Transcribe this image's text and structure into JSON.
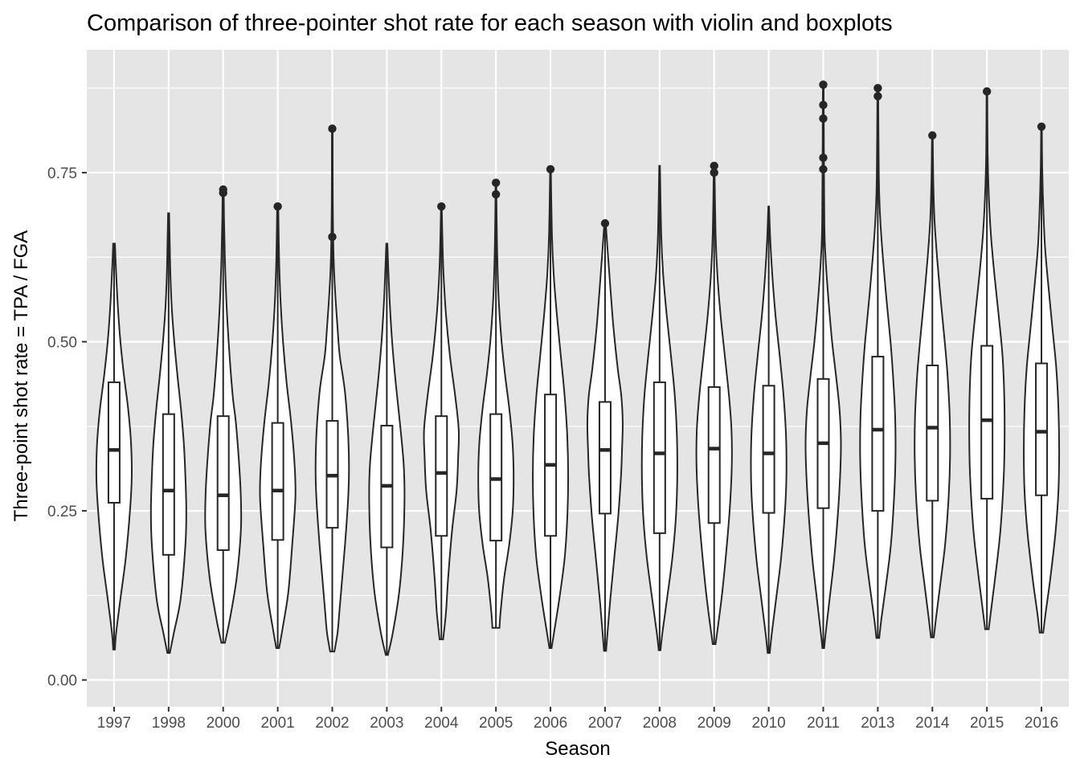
{
  "chart_data": {
    "type": "violin",
    "title": "Comparison of three-pointer shot rate for each season with violin and boxplots",
    "xlabel": "Season",
    "ylabel": "Three-point shot rate = TPA / FGA",
    "ylim": [
      0,
      0.9
    ],
    "yticks": [
      {
        "value": 0.0,
        "label": "0.00"
      },
      {
        "value": 0.25,
        "label": "0.25"
      },
      {
        "value": 0.5,
        "label": "0.50"
      },
      {
        "value": 0.75,
        "label": "0.75"
      }
    ],
    "grid": true,
    "categories": [
      "1997",
      "1998",
      "2000",
      "2001",
      "2002",
      "2003",
      "2004",
      "2005",
      "2006",
      "2007",
      "2008",
      "2009",
      "2010",
      "2011",
      "2013",
      "2014",
      "2015",
      "2016"
    ],
    "series": [
      {
        "season": "1997",
        "min": 0.045,
        "q1": 0.262,
        "median": 0.34,
        "q3": 0.44,
        "max": 0.645,
        "outliers": [],
        "density": [
          [
            0.045,
            0.05
          ],
          [
            0.07,
            0.12
          ],
          [
            0.12,
            0.36
          ],
          [
            0.18,
            0.66
          ],
          [
            0.25,
            0.9
          ],
          [
            0.3,
            1.0
          ],
          [
            0.35,
            0.96
          ],
          [
            0.4,
            0.8
          ],
          [
            0.45,
            0.56
          ],
          [
            0.5,
            0.36
          ],
          [
            0.55,
            0.22
          ],
          [
            0.6,
            0.12
          ],
          [
            0.645,
            0.05
          ]
        ]
      },
      {
        "season": "1998",
        "min": 0.04,
        "q1": 0.185,
        "median": 0.28,
        "q3": 0.393,
        "max": 0.69,
        "outliers": [],
        "density": [
          [
            0.04,
            0.07
          ],
          [
            0.07,
            0.3
          ],
          [
            0.12,
            0.68
          ],
          [
            0.2,
            0.95
          ],
          [
            0.25,
            1.0
          ],
          [
            0.3,
            0.95
          ],
          [
            0.35,
            0.86
          ],
          [
            0.4,
            0.7
          ],
          [
            0.45,
            0.5
          ],
          [
            0.5,
            0.32
          ],
          [
            0.55,
            0.18
          ],
          [
            0.6,
            0.1
          ],
          [
            0.65,
            0.06
          ],
          [
            0.69,
            0.03
          ]
        ]
      },
      {
        "season": "2000",
        "min": 0.055,
        "q1": 0.192,
        "median": 0.273,
        "q3": 0.39,
        "max": 0.725,
        "outliers": [
          0.72,
          0.725
        ],
        "density": [
          [
            0.055,
            0.1
          ],
          [
            0.09,
            0.38
          ],
          [
            0.15,
            0.76
          ],
          [
            0.22,
            1.0
          ],
          [
            0.27,
            1.0
          ],
          [
            0.32,
            0.9
          ],
          [
            0.38,
            0.72
          ],
          [
            0.42,
            0.54
          ],
          [
            0.48,
            0.36
          ],
          [
            0.55,
            0.2
          ],
          [
            0.62,
            0.1
          ],
          [
            0.68,
            0.05
          ],
          [
            0.725,
            0.03
          ]
        ]
      },
      {
        "season": "2001",
        "min": 0.047,
        "q1": 0.207,
        "median": 0.28,
        "q3": 0.38,
        "max": 0.7,
        "outliers": [
          0.7
        ],
        "density": [
          [
            0.047,
            0.08
          ],
          [
            0.08,
            0.3
          ],
          [
            0.13,
            0.6
          ],
          [
            0.2,
            0.82
          ],
          [
            0.27,
            1.0
          ],
          [
            0.32,
            0.95
          ],
          [
            0.38,
            0.76
          ],
          [
            0.44,
            0.5
          ],
          [
            0.5,
            0.3
          ],
          [
            0.56,
            0.16
          ],
          [
            0.62,
            0.08
          ],
          [
            0.7,
            0.03
          ]
        ]
      },
      {
        "season": "2002",
        "min": 0.042,
        "q1": 0.225,
        "median": 0.302,
        "q3": 0.383,
        "max": 0.815,
        "outliers": [
          0.655,
          0.815
        ],
        "density": [
          [
            0.042,
            0.12
          ],
          [
            0.07,
            0.3
          ],
          [
            0.1,
            0.4
          ],
          [
            0.15,
            0.56
          ],
          [
            0.2,
            0.72
          ],
          [
            0.26,
            0.88
          ],
          [
            0.3,
            0.94
          ],
          [
            0.34,
            0.93
          ],
          [
            0.38,
            0.86
          ],
          [
            0.43,
            0.7
          ],
          [
            0.48,
            0.42
          ],
          [
            0.52,
            0.3
          ],
          [
            0.57,
            0.17
          ],
          [
            0.62,
            0.08
          ],
          [
            0.7,
            0.03
          ],
          [
            0.815,
            0.02
          ]
        ]
      },
      {
        "season": "2003",
        "min": 0.037,
        "q1": 0.196,
        "median": 0.287,
        "q3": 0.376,
        "max": 0.645,
        "outliers": [],
        "density": [
          [
            0.037,
            0.06
          ],
          [
            0.07,
            0.34
          ],
          [
            0.13,
            0.7
          ],
          [
            0.2,
            0.92
          ],
          [
            0.27,
            1.0
          ],
          [
            0.32,
            0.95
          ],
          [
            0.38,
            0.74
          ],
          [
            0.44,
            0.5
          ],
          [
            0.5,
            0.3
          ],
          [
            0.56,
            0.16
          ],
          [
            0.61,
            0.08
          ],
          [
            0.645,
            0.03
          ]
        ]
      },
      {
        "season": "2004",
        "min": 0.06,
        "q1": 0.213,
        "median": 0.306,
        "q3": 0.39,
        "max": 0.7,
        "outliers": [
          0.7
        ],
        "density": [
          [
            0.06,
            0.1
          ],
          [
            0.1,
            0.26
          ],
          [
            0.15,
            0.38
          ],
          [
            0.22,
            0.6
          ],
          [
            0.28,
            0.86
          ],
          [
            0.33,
            0.95
          ],
          [
            0.37,
            0.98
          ],
          [
            0.42,
            0.78
          ],
          [
            0.48,
            0.48
          ],
          [
            0.54,
            0.26
          ],
          [
            0.6,
            0.12
          ],
          [
            0.65,
            0.06
          ],
          [
            0.7,
            0.02
          ]
        ]
      },
      {
        "season": "2005",
        "min": 0.077,
        "q1": 0.206,
        "median": 0.297,
        "q3": 0.393,
        "max": 0.735,
        "outliers": [
          0.718,
          0.735
        ],
        "density": [
          [
            0.077,
            0.2
          ],
          [
            0.1,
            0.26
          ],
          [
            0.15,
            0.46
          ],
          [
            0.2,
            0.75
          ],
          [
            0.25,
            0.95
          ],
          [
            0.3,
            1.0
          ],
          [
            0.35,
            0.94
          ],
          [
            0.4,
            0.76
          ],
          [
            0.45,
            0.52
          ],
          [
            0.5,
            0.32
          ],
          [
            0.56,
            0.16
          ],
          [
            0.62,
            0.08
          ],
          [
            0.68,
            0.04
          ],
          [
            0.735,
            0.02
          ]
        ]
      },
      {
        "season": "2006",
        "min": 0.047,
        "q1": 0.213,
        "median": 0.318,
        "q3": 0.422,
        "max": 0.755,
        "outliers": [
          0.755
        ],
        "density": [
          [
            0.047,
            0.06
          ],
          [
            0.07,
            0.2
          ],
          [
            0.12,
            0.5
          ],
          [
            0.18,
            0.8
          ],
          [
            0.24,
            0.95
          ],
          [
            0.3,
            1.0
          ],
          [
            0.36,
            0.95
          ],
          [
            0.42,
            0.8
          ],
          [
            0.48,
            0.58
          ],
          [
            0.54,
            0.36
          ],
          [
            0.6,
            0.18
          ],
          [
            0.66,
            0.08
          ],
          [
            0.755,
            0.02
          ]
        ]
      },
      {
        "season": "2007",
        "min": 0.043,
        "q1": 0.246,
        "median": 0.34,
        "q3": 0.411,
        "max": 0.675,
        "outliers": [
          0.675
        ],
        "density": [
          [
            0.043,
            0.06
          ],
          [
            0.07,
            0.14
          ],
          [
            0.12,
            0.3
          ],
          [
            0.18,
            0.52
          ],
          [
            0.24,
            0.74
          ],
          [
            0.3,
            0.9
          ],
          [
            0.34,
            0.96
          ],
          [
            0.38,
            1.0
          ],
          [
            0.42,
            0.92
          ],
          [
            0.46,
            0.72
          ],
          [
            0.52,
            0.48
          ],
          [
            0.58,
            0.3
          ],
          [
            0.63,
            0.16
          ],
          [
            0.675,
            0.04
          ]
        ]
      },
      {
        "season": "2008",
        "min": 0.044,
        "q1": 0.217,
        "median": 0.335,
        "q3": 0.44,
        "max": 0.76,
        "outliers": [],
        "density": [
          [
            0.044,
            0.05
          ],
          [
            0.07,
            0.16
          ],
          [
            0.12,
            0.42
          ],
          [
            0.18,
            0.72
          ],
          [
            0.24,
            0.92
          ],
          [
            0.3,
            1.0
          ],
          [
            0.36,
            0.98
          ],
          [
            0.42,
            0.86
          ],
          [
            0.48,
            0.64
          ],
          [
            0.54,
            0.4
          ],
          [
            0.6,
            0.2
          ],
          [
            0.66,
            0.09
          ],
          [
            0.76,
            0.02
          ]
        ]
      },
      {
        "season": "2009",
        "min": 0.053,
        "q1": 0.232,
        "median": 0.342,
        "q3": 0.433,
        "max": 0.76,
        "outliers": [
          0.75,
          0.76
        ],
        "density": [
          [
            0.053,
            0.08
          ],
          [
            0.08,
            0.22
          ],
          [
            0.13,
            0.46
          ],
          [
            0.2,
            0.72
          ],
          [
            0.26,
            0.9
          ],
          [
            0.32,
            1.0
          ],
          [
            0.37,
            0.98
          ],
          [
            0.42,
            0.84
          ],
          [
            0.48,
            0.6
          ],
          [
            0.54,
            0.36
          ],
          [
            0.6,
            0.18
          ],
          [
            0.66,
            0.08
          ],
          [
            0.76,
            0.02
          ]
        ]
      },
      {
        "season": "2010",
        "min": 0.04,
        "q1": 0.247,
        "median": 0.335,
        "q3": 0.435,
        "max": 0.7,
        "outliers": [],
        "density": [
          [
            0.04,
            0.06
          ],
          [
            0.07,
            0.18
          ],
          [
            0.12,
            0.42
          ],
          [
            0.18,
            0.7
          ],
          [
            0.25,
            0.92
          ],
          [
            0.3,
            1.0
          ],
          [
            0.36,
            0.98
          ],
          [
            0.42,
            0.84
          ],
          [
            0.48,
            0.62
          ],
          [
            0.54,
            0.38
          ],
          [
            0.6,
            0.2
          ],
          [
            0.65,
            0.09
          ],
          [
            0.7,
            0.02
          ]
        ]
      },
      {
        "season": "2011",
        "min": 0.047,
        "q1": 0.254,
        "median": 0.35,
        "q3": 0.445,
        "max": 0.88,
        "outliers": [
          0.755,
          0.772,
          0.83,
          0.85,
          0.88
        ],
        "density": [
          [
            0.047,
            0.05
          ],
          [
            0.07,
            0.14
          ],
          [
            0.12,
            0.36
          ],
          [
            0.18,
            0.62
          ],
          [
            0.25,
            0.84
          ],
          [
            0.3,
            0.95
          ],
          [
            0.35,
            1.0
          ],
          [
            0.4,
            0.92
          ],
          [
            0.45,
            0.72
          ],
          [
            0.5,
            0.5
          ],
          [
            0.56,
            0.3
          ],
          [
            0.62,
            0.14
          ],
          [
            0.68,
            0.06
          ],
          [
            0.88,
            0.02
          ]
        ]
      },
      {
        "season": "2013",
        "min": 0.062,
        "q1": 0.25,
        "median": 0.37,
        "q3": 0.478,
        "max": 0.875,
        "outliers": [
          0.863,
          0.875
        ],
        "density": [
          [
            0.062,
            0.08
          ],
          [
            0.09,
            0.2
          ],
          [
            0.14,
            0.46
          ],
          [
            0.2,
            0.74
          ],
          [
            0.27,
            0.92
          ],
          [
            0.33,
            1.0
          ],
          [
            0.39,
            0.98
          ],
          [
            0.45,
            0.86
          ],
          [
            0.5,
            0.72
          ],
          [
            0.56,
            0.5
          ],
          [
            0.62,
            0.3
          ],
          [
            0.68,
            0.14
          ],
          [
            0.74,
            0.06
          ],
          [
            0.875,
            0.02
          ]
        ]
      },
      {
        "season": "2014",
        "min": 0.063,
        "q1": 0.265,
        "median": 0.373,
        "q3": 0.465,
        "max": 0.805,
        "outliers": [
          0.805
        ],
        "density": [
          [
            0.063,
            0.08
          ],
          [
            0.09,
            0.2
          ],
          [
            0.14,
            0.44
          ],
          [
            0.2,
            0.72
          ],
          [
            0.27,
            0.92
          ],
          [
            0.33,
            1.0
          ],
          [
            0.39,
            0.98
          ],
          [
            0.45,
            0.86
          ],
          [
            0.5,
            0.7
          ],
          [
            0.56,
            0.48
          ],
          [
            0.62,
            0.28
          ],
          [
            0.68,
            0.12
          ],
          [
            0.74,
            0.05
          ],
          [
            0.805,
            0.02
          ]
        ]
      },
      {
        "season": "2015",
        "min": 0.075,
        "q1": 0.268,
        "median": 0.384,
        "q3": 0.494,
        "max": 0.87,
        "outliers": [
          0.87
        ],
        "density": [
          [
            0.075,
            0.1
          ],
          [
            0.1,
            0.22
          ],
          [
            0.15,
            0.46
          ],
          [
            0.22,
            0.76
          ],
          [
            0.3,
            0.95
          ],
          [
            0.36,
            1.0
          ],
          [
            0.42,
            0.98
          ],
          [
            0.48,
            0.88
          ],
          [
            0.54,
            0.66
          ],
          [
            0.6,
            0.42
          ],
          [
            0.66,
            0.22
          ],
          [
            0.72,
            0.1
          ],
          [
            0.78,
            0.04
          ],
          [
            0.87,
            0.02
          ]
        ]
      },
      {
        "season": "2016",
        "min": 0.07,
        "q1": 0.273,
        "median": 0.367,
        "q3": 0.468,
        "max": 0.818,
        "outliers": [
          0.818
        ],
        "density": [
          [
            0.07,
            0.1
          ],
          [
            0.1,
            0.24
          ],
          [
            0.15,
            0.5
          ],
          [
            0.22,
            0.8
          ],
          [
            0.28,
            0.96
          ],
          [
            0.34,
            1.0
          ],
          [
            0.4,
            0.96
          ],
          [
            0.46,
            0.84
          ],
          [
            0.52,
            0.62
          ],
          [
            0.58,
            0.4
          ],
          [
            0.64,
            0.2
          ],
          [
            0.7,
            0.1
          ],
          [
            0.76,
            0.04
          ],
          [
            0.818,
            0.02
          ]
        ]
      }
    ]
  }
}
